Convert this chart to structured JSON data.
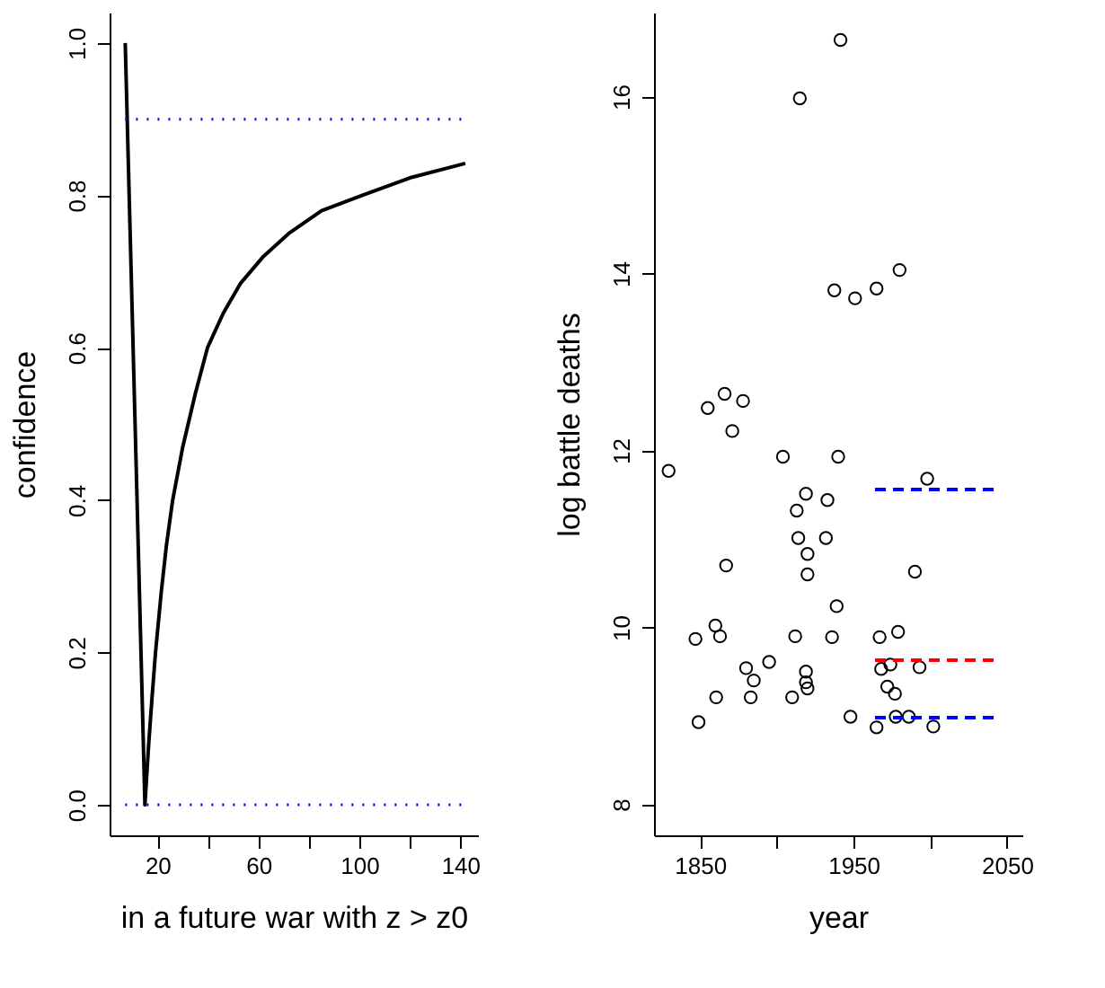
{
  "chart_data": [
    {
      "type": "line",
      "xlabel": "in a future war with z > z0",
      "ylabel": "confidence",
      "xlim": [
        1,
        147
      ],
      "ylim": [
        -0.04,
        1.04
      ],
      "xticks": [
        20,
        {
          "value": 40,
          "label": null
        },
        60,
        {
          "value": 80,
          "label": null
        },
        100,
        {
          "value": 120,
          "label": null
        },
        140
      ],
      "yticks": [
        {
          "value": 0,
          "label": "0.0"
        },
        0.2,
        0.4,
        0.6,
        0.8,
        {
          "value": 1,
          "label": "1.0"
        }
      ],
      "grid": false,
      "marker": "none",
      "line_style": "solid",
      "series": [
        {
          "color": "#000000",
          "x": [
            7.2,
            15,
            16.5,
            17.8,
            19.2,
            21.5,
            23.5,
            26,
            30,
            35,
            39.8,
            46,
            53,
            62,
            72,
            85,
            101,
            120,
            142
          ],
          "values": [
            1.0,
            0.0,
            0.08,
            0.14,
            0.2,
            0.28,
            0.34,
            0.4,
            0.47,
            0.54,
            0.6,
            0.645,
            0.685,
            0.72,
            0.75,
            0.78,
            0.8,
            0.823,
            0.842
          ]
        }
      ],
      "ref_lines": [
        {
          "axis": "y",
          "value": 0.9,
          "color": "#0000ff",
          "line_style": "dotted"
        },
        {
          "axis": "y",
          "value": 0,
          "color": "#0000ff",
          "line_style": "dotted"
        }
      ]
    },
    {
      "type": "scatter",
      "xlabel": "year",
      "ylabel": "log battle deaths",
      "xlim": [
        1820,
        2060
      ],
      "ylim": [
        7.65,
        16.95
      ],
      "xticks": [
        1850,
        {
          "value": 1900,
          "label": null
        },
        1950,
        {
          "value": 2000,
          "label": null
        },
        2050
      ],
      "yticks": [
        8,
        10,
        12,
        14,
        16
      ],
      "grid": false,
      "marker": "circle",
      "series": [
        {
          "color": "#000000",
          "x": [
            1847,
            1849,
            1860,
            1863,
            1860.5,
            1867,
            1880,
            1885,
            1883,
            1895,
            1912,
            1910,
            1913,
            1914,
            1919,
            1920,
            1920,
            1919,
            1919,
            1920,
            1933,
            1932,
            1939,
            1936,
            1948,
            1965,
            1967,
            1968,
            1974,
            1972,
            1977,
            1977.5,
            1979,
            1986,
            1990,
            1993,
            2002,
            1998,
            1829.5,
            1855,
            1866,
            1878,
            1871,
            1904,
            1940,
            1915,
            1941.5,
            1937.5,
            1951,
            1965,
            1980
          ],
          "values": [
            9.87,
            8.93,
            10.02,
            9.9,
            9.21,
            10.7,
            9.54,
            9.4,
            9.21,
            9.61,
            9.9,
            9.21,
            11.32,
            11.01,
            11.51,
            10.83,
            10.6,
            9.5,
            9.38,
            9.31,
            11.44,
            11.01,
            10.24,
            9.89,
            8.99,
            8.87,
            9.89,
            9.53,
            9.58,
            9.33,
            9.25,
            8.99,
            9.95,
            8.99,
            10.63,
            9.55,
            8.88,
            11.68,
            11.77,
            12.48,
            12.64,
            12.56,
            12.22,
            11.93,
            11.93,
            15.98,
            16.64,
            13.81,
            13.72,
            13.83,
            14.04
          ]
        },
        {
          "type": "line",
          "color": "#0000ff",
          "line_style": "dashed",
          "marker": "none",
          "x": [
            1964,
            2043
          ],
          "values": [
            11.56,
            11.56
          ]
        },
        {
          "type": "line",
          "color": "#ff0000",
          "line_style": "dashed",
          "marker": "none",
          "x": [
            1964,
            2043
          ],
          "values": [
            9.63,
            9.63
          ]
        },
        {
          "type": "line",
          "color": "#0000ff",
          "line_style": "dashed",
          "marker": "none",
          "x": [
            1964,
            2043
          ],
          "values": [
            8.98,
            8.98
          ]
        }
      ]
    }
  ]
}
